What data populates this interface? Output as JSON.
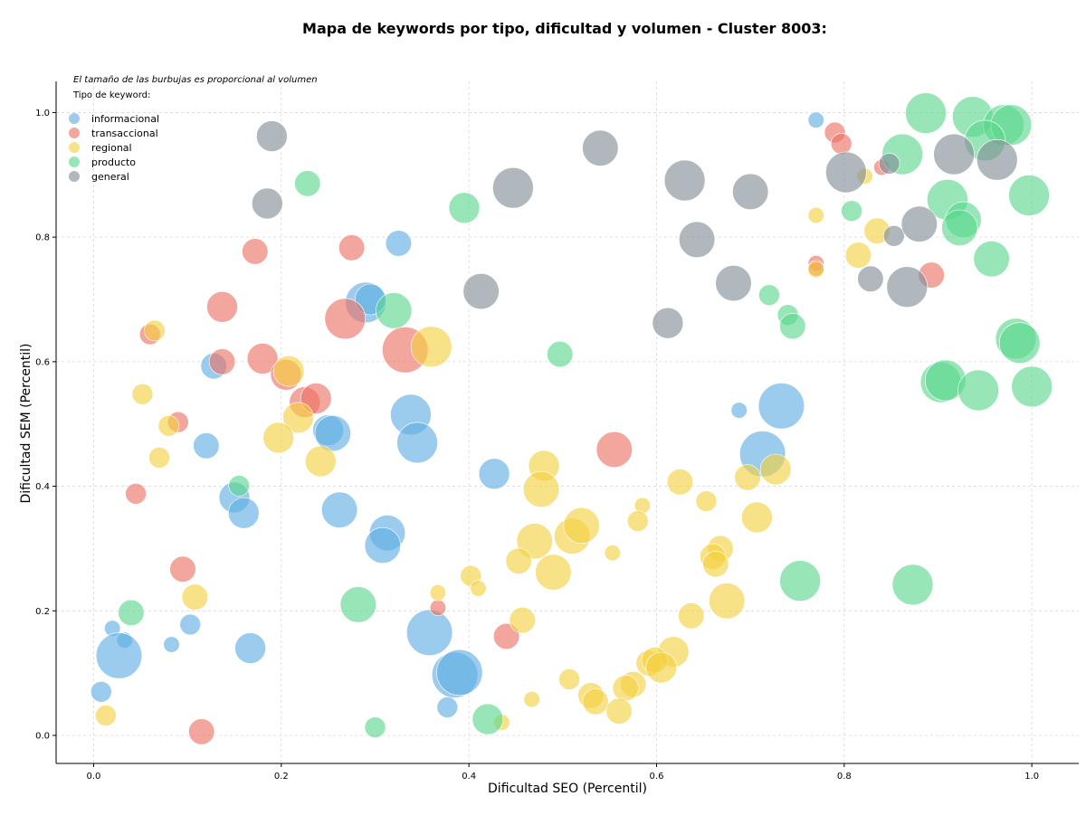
{
  "chart_data": {
    "type": "scatter",
    "title": "Mapa de keywords por tipo, dificultad y volumen - Cluster 8003:",
    "xlabel": "Dificultad SEO (Percentil)",
    "ylabel": "Dificultad SEM (Percentil)",
    "xlim": [
      -0.04,
      1.05
    ],
    "ylim": [
      -0.045,
      1.05
    ],
    "xticks": [
      "0.0",
      "0.2",
      "0.4",
      "0.6",
      "0.8",
      "1.0"
    ],
    "yticks": [
      "0.0",
      "0.2",
      "0.4",
      "0.6",
      "0.8",
      "1.0"
    ],
    "grid": true,
    "annotation": "El tamaño de las burbujas es proporcional al volumen",
    "legend": {
      "title": "Tipo de keyword:",
      "placement": "top-left"
    },
    "series": [
      {
        "name": "informacional",
        "color": "#5DADE2",
        "points": [
          [
            0.77,
            0.988,
            1
          ],
          [
            0.325,
            0.79,
            3
          ],
          [
            0.29,
            0.695,
            6
          ],
          [
            0.295,
            0.7,
            4
          ],
          [
            0.128,
            0.593,
            3
          ],
          [
            0.338,
            0.515,
            6
          ],
          [
            0.345,
            0.47,
            6
          ],
          [
            0.25,
            0.49,
            4
          ],
          [
            0.255,
            0.485,
            5
          ],
          [
            0.12,
            0.465,
            3
          ],
          [
            0.427,
            0.42,
            4
          ],
          [
            0.688,
            0.522,
            1
          ],
          [
            0.733,
            0.529,
            7
          ],
          [
            0.713,
            0.452,
            7
          ],
          [
            0.15,
            0.382,
            4
          ],
          [
            0.16,
            0.357,
            4
          ],
          [
            0.262,
            0.362,
            5
          ],
          [
            0.313,
            0.325,
            5
          ],
          [
            0.308,
            0.305,
            5
          ],
          [
            0.02,
            0.172,
            1
          ],
          [
            0.033,
            0.153,
            1
          ],
          [
            0.027,
            0.128,
            7
          ],
          [
            0.083,
            0.146,
            1
          ],
          [
            0.103,
            0.178,
            2
          ],
          [
            0.167,
            0.14,
            4
          ],
          [
            0.358,
            0.165,
            7
          ],
          [
            0.385,
            0.097,
            7
          ],
          [
            0.39,
            0.101,
            7
          ],
          [
            0.377,
            0.045,
            2
          ],
          [
            0.008,
            0.07,
            2
          ]
        ]
      },
      {
        "name": "transaccional",
        "color": "#EC7063",
        "points": [
          [
            0.79,
            0.968,
            2
          ],
          [
            0.797,
            0.95,
            2
          ],
          [
            0.84,
            0.912,
            1
          ],
          [
            0.172,
            0.777,
            3
          ],
          [
            0.275,
            0.783,
            3
          ],
          [
            0.137,
            0.688,
            4
          ],
          [
            0.268,
            0.669,
            6
          ],
          [
            0.77,
            0.758,
            1
          ],
          [
            0.77,
            0.75,
            1
          ],
          [
            0.893,
            0.739,
            3
          ],
          [
            0.06,
            0.644,
            2
          ],
          [
            0.137,
            0.6,
            3
          ],
          [
            0.18,
            0.605,
            4
          ],
          [
            0.205,
            0.579,
            4
          ],
          [
            0.332,
            0.619,
            7
          ],
          [
            0.225,
            0.535,
            4
          ],
          [
            0.237,
            0.541,
            4
          ],
          [
            0.09,
            0.503,
            2
          ],
          [
            0.555,
            0.459,
            5
          ],
          [
            0.045,
            0.388,
            2
          ],
          [
            0.095,
            0.267,
            3
          ],
          [
            0.367,
            0.205,
            1
          ],
          [
            0.44,
            0.159,
            3
          ],
          [
            0.115,
            0.006,
            3
          ]
        ]
      },
      {
        "name": "regional",
        "color": "#F4D03F",
        "points": [
          [
            0.822,
            0.898,
            1
          ],
          [
            0.77,
            0.835,
            1
          ],
          [
            0.835,
            0.81,
            3
          ],
          [
            0.815,
            0.771,
            3
          ],
          [
            0.77,
            0.748,
            1
          ],
          [
            0.065,
            0.65,
            2
          ],
          [
            0.36,
            0.624,
            6
          ],
          [
            0.208,
            0.585,
            4
          ],
          [
            0.052,
            0.548,
            2
          ],
          [
            0.08,
            0.497,
            2
          ],
          [
            0.218,
            0.51,
            4
          ],
          [
            0.197,
            0.478,
            4
          ],
          [
            0.242,
            0.44,
            4
          ],
          [
            0.07,
            0.446,
            2
          ],
          [
            0.48,
            0.433,
            4
          ],
          [
            0.477,
            0.395,
            5
          ],
          [
            0.625,
            0.407,
            3
          ],
          [
            0.697,
            0.414,
            3
          ],
          [
            0.727,
            0.427,
            4
          ],
          [
            0.653,
            0.376,
            2
          ],
          [
            0.585,
            0.369,
            1
          ],
          [
            0.707,
            0.35,
            4
          ],
          [
            0.58,
            0.344,
            2
          ],
          [
            0.47,
            0.312,
            5
          ],
          [
            0.51,
            0.32,
            5
          ],
          [
            0.52,
            0.337,
            5
          ],
          [
            0.453,
            0.28,
            3
          ],
          [
            0.49,
            0.262,
            5
          ],
          [
            0.553,
            0.293,
            1
          ],
          [
            0.668,
            0.3,
            3
          ],
          [
            0.66,
            0.287,
            3
          ],
          [
            0.663,
            0.275,
            3
          ],
          [
            0.402,
            0.256,
            2
          ],
          [
            0.41,
            0.236,
            1
          ],
          [
            0.367,
            0.229,
            1
          ],
          [
            0.108,
            0.222,
            3
          ],
          [
            0.675,
            0.216,
            5
          ],
          [
            0.637,
            0.192,
            3
          ],
          [
            0.457,
            0.185,
            3
          ],
          [
            0.618,
            0.134,
            4
          ],
          [
            0.592,
            0.116,
            3
          ],
          [
            0.598,
            0.121,
            3
          ],
          [
            0.605,
            0.109,
            4
          ],
          [
            0.507,
            0.09,
            2
          ],
          [
            0.575,
            0.082,
            3
          ],
          [
            0.567,
            0.076,
            3
          ],
          [
            0.53,
            0.064,
            3
          ],
          [
            0.535,
            0.054,
            3
          ],
          [
            0.56,
            0.039,
            3
          ],
          [
            0.467,
            0.058,
            1
          ],
          [
            0.435,
            0.021,
            1
          ],
          [
            0.013,
            0.032,
            2
          ]
        ]
      },
      {
        "name": "producto",
        "color": "#58D68D",
        "points": [
          [
            0.887,
            0.999,
            6
          ],
          [
            0.937,
            0.993,
            6
          ],
          [
            0.97,
            0.98,
            6
          ],
          [
            0.978,
            0.98,
            6
          ],
          [
            0.95,
            0.955,
            6
          ],
          [
            0.862,
            0.933,
            6
          ],
          [
            0.228,
            0.886,
            3
          ],
          [
            0.395,
            0.847,
            4
          ],
          [
            0.808,
            0.842,
            2
          ],
          [
            0.91,
            0.86,
            6
          ],
          [
            0.927,
            0.828,
            5
          ],
          [
            0.997,
            0.867,
            6
          ],
          [
            0.923,
            0.815,
            5
          ],
          [
            0.957,
            0.765,
            5
          ],
          [
            0.72,
            0.707,
            2
          ],
          [
            0.74,
            0.675,
            2
          ],
          [
            0.745,
            0.657,
            3
          ],
          [
            0.32,
            0.682,
            5
          ],
          [
            0.497,
            0.612,
            3
          ],
          [
            0.983,
            0.637,
            6
          ],
          [
            0.987,
            0.63,
            6
          ],
          [
            0.903,
            0.567,
            6
          ],
          [
            0.908,
            0.57,
            6
          ],
          [
            0.943,
            0.554,
            6
          ],
          [
            1.0,
            0.56,
            6
          ],
          [
            0.155,
            0.401,
            2
          ],
          [
            0.753,
            0.248,
            6
          ],
          [
            0.873,
            0.242,
            6
          ],
          [
            0.04,
            0.197,
            3
          ],
          [
            0.282,
            0.21,
            5
          ],
          [
            0.42,
            0.026,
            4
          ],
          [
            0.3,
            0.013,
            2
          ]
        ]
      },
      {
        "name": "general",
        "color": "#7F8C96",
        "points": [
          [
            0.19,
            0.962,
            4
          ],
          [
            0.54,
            0.943,
            5
          ],
          [
            0.447,
            0.879,
            6
          ],
          [
            0.63,
            0.891,
            6
          ],
          [
            0.7,
            0.873,
            5
          ],
          [
            0.802,
            0.904,
            6
          ],
          [
            0.848,
            0.918,
            2
          ],
          [
            0.917,
            0.933,
            6
          ],
          [
            0.963,
            0.924,
            6
          ],
          [
            0.185,
            0.854,
            4
          ],
          [
            0.643,
            0.796,
            5
          ],
          [
            0.853,
            0.802,
            2
          ],
          [
            0.88,
            0.821,
            5
          ],
          [
            0.828,
            0.733,
            3
          ],
          [
            0.867,
            0.72,
            6
          ],
          [
            0.682,
            0.726,
            5
          ],
          [
            0.413,
            0.713,
            5
          ],
          [
            0.612,
            0.662,
            4
          ]
        ]
      }
    ]
  }
}
